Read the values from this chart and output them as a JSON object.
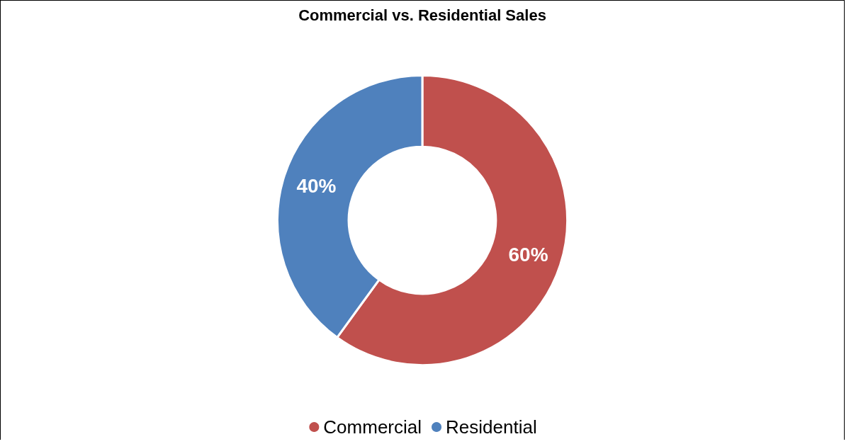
{
  "chart_data": {
    "type": "donut",
    "title": "Commercial vs. Residential Sales",
    "categories": [
      "Commercial",
      "Residential"
    ],
    "values": [
      60,
      40
    ],
    "value_labels": [
      "60%",
      "40%"
    ],
    "colors": [
      "#c0504d",
      "#4f81bd"
    ],
    "legend": "bottom"
  }
}
